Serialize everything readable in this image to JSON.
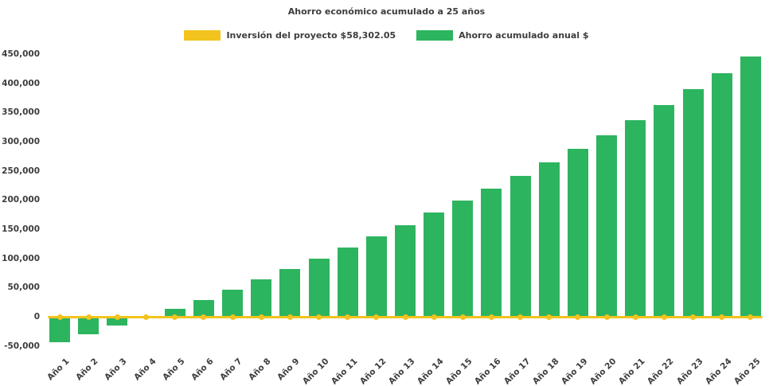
{
  "title": "Ahorro económico acumulado a 25 años",
  "colors": {
    "investment_line": "#f2c31d",
    "savings_bar": "#2db45f",
    "text": "#3d3d3d",
    "background": "#ffffff"
  },
  "chart_data": {
    "type": "bar",
    "title": "Ahorro económico acumulado a 25 años",
    "xlabel": "",
    "ylabel": "",
    "grid": false,
    "legend_position": "top",
    "ylim": [
      -60000,
      450000
    ],
    "ytick_step": 50000,
    "ytick_values": [
      -50000,
      0,
      50000,
      100000,
      150000,
      200000,
      250000,
      300000,
      350000,
      400000,
      450000
    ],
    "categories": [
      "Año 1",
      "Año 2",
      "Año 3",
      "Año 4",
      "Año 5",
      "Año 6",
      "Año 7",
      "Año 8",
      "Año 9",
      "Año 10",
      "Año 11",
      "Año 12",
      "Año 13",
      "Año 14",
      "Año 15",
      "Año 16",
      "Año 17",
      "Año 18",
      "Año 19",
      "Año 20",
      "Año 21",
      "Año 22",
      "Año 23",
      "Año 24",
      "Año 25"
    ],
    "series": [
      {
        "name": "Inversión del proyecto $58,302.05",
        "type": "line",
        "color": "#f2c31d",
        "marker": "circle",
        "constant_value": 0
      },
      {
        "name": "Ahorro acumulado anual $",
        "type": "bar",
        "color": "#2db45f",
        "values": [
          -44000,
          -29500,
          -14500,
          500,
          13000,
          29000,
          46000,
          64000,
          82000,
          100000,
          118500,
          138000,
          157500,
          178000,
          198500,
          220000,
          242000,
          264500,
          287500,
          311000,
          337000,
          362500,
          390000,
          417500,
          446000
        ]
      }
    ]
  }
}
